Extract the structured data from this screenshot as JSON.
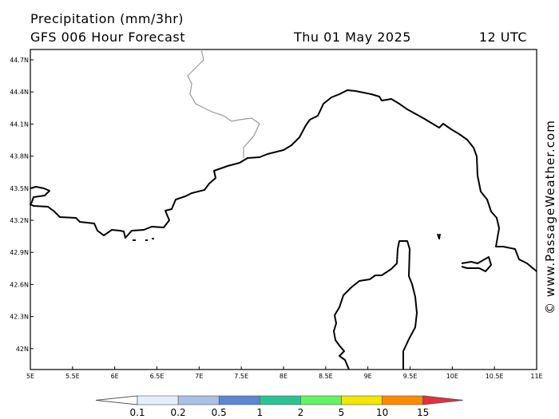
{
  "header": {
    "title": "Precipitation (mm/3hr)",
    "model": "GFS 006 Hour Forecast",
    "date": "Thu 01 May 2025",
    "time": "12 UTC"
  },
  "map": {
    "x_labels": [
      "5E",
      "5.5E",
      "6E",
      "6.5E",
      "7E",
      "7.5E",
      "8E",
      "8.5E",
      "9E",
      "9.5E",
      "10E",
      "10.5E",
      "11E"
    ],
    "y_labels": [
      "44.7N",
      "44.4N",
      "44.1N",
      "43.8N",
      "43.5N",
      "43.2N",
      "42.9N",
      "42.6N",
      "42.3N",
      "42N"
    ]
  },
  "legend": {
    "below_color": "#ffffff",
    "above_color": "#e8303c",
    "labels": [
      "0.1",
      "0.2",
      "0.5",
      "1",
      "2",
      "5",
      "10",
      "15"
    ],
    "colors": [
      "#e6eef9",
      "#a9c1e3",
      "#5c86d2",
      "#2cc394",
      "#62f562",
      "#f5e600",
      "#ff8a00"
    ]
  },
  "watermark": "© www.PassageWeather.com"
}
